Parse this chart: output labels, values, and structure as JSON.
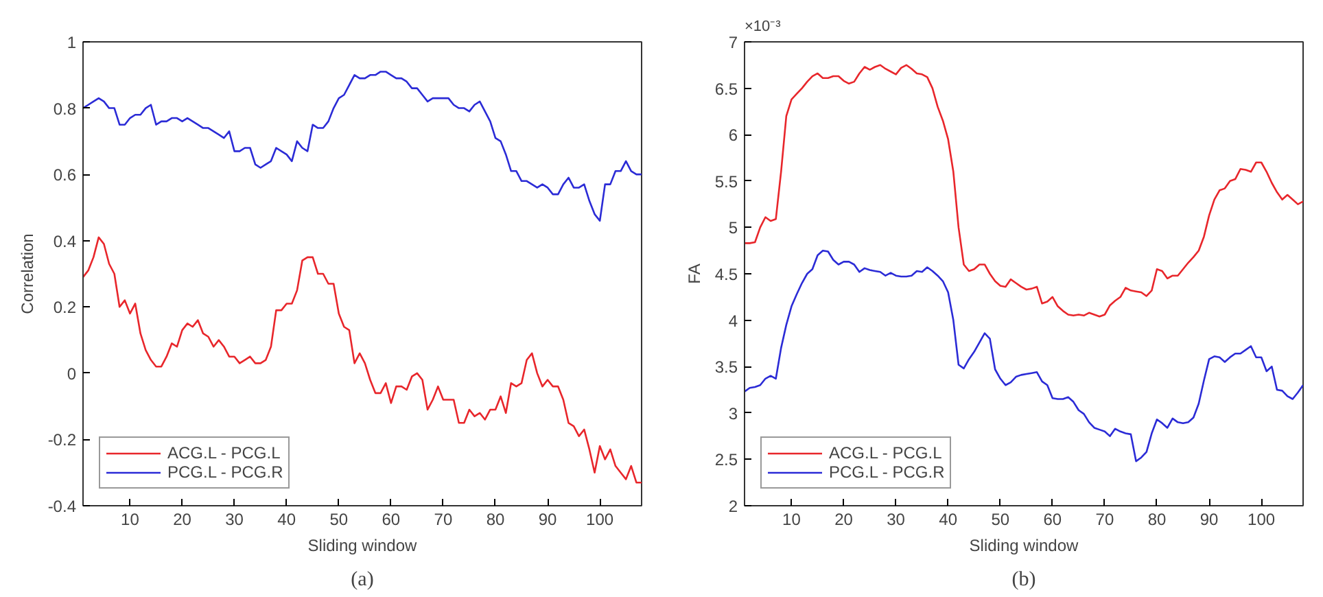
{
  "chart_data": [
    {
      "type": "line",
      "xlabel": "Sliding window",
      "ylabel": "Correlation",
      "annotations": [
        "(a)"
      ],
      "xlim": [
        1,
        108
      ],
      "xticks": [
        10,
        20,
        30,
        40,
        50,
        60,
        70,
        80,
        90,
        100
      ],
      "ylim": [
        -0.4,
        1
      ],
      "yticks": [
        -0.4,
        -0.2,
        0,
        0.2,
        0.4,
        0.6,
        0.8,
        1
      ],
      "grid": false,
      "legend": "bottom left",
      "marker": "none",
      "line_style": "solid",
      "x": [
        1,
        2,
        3,
        4,
        5,
        6,
        7,
        8,
        9,
        10,
        11,
        12,
        13,
        14,
        15,
        16,
        17,
        18,
        19,
        20,
        21,
        22,
        23,
        24,
        25,
        26,
        27,
        28,
        29,
        30,
        31,
        32,
        33,
        34,
        35,
        36,
        37,
        38,
        39,
        40,
        41,
        42,
        43,
        44,
        45,
        46,
        47,
        48,
        49,
        50,
        51,
        52,
        53,
        54,
        55,
        56,
        57,
        58,
        59,
        60,
        61,
        62,
        63,
        64,
        65,
        66,
        67,
        68,
        69,
        70,
        71,
        72,
        73,
        74,
        75,
        76,
        77,
        78,
        79,
        80,
        81,
        82,
        83,
        84,
        85,
        86,
        87,
        88,
        89,
        90,
        91,
        92,
        93,
        94,
        95,
        96,
        97,
        98,
        99,
        100,
        101,
        102,
        103,
        104,
        105,
        106,
        107,
        108
      ],
      "series": [
        {
          "name": "ACG.L - PCG.L",
          "color": "#e8262b",
          "values": [
            0.29,
            0.31,
            0.35,
            0.41,
            0.39,
            0.33,
            0.3,
            0.2,
            0.22,
            0.18,
            0.21,
            0.12,
            0.07,
            0.04,
            0.02,
            0.02,
            0.05,
            0.09,
            0.08,
            0.13,
            0.15,
            0.14,
            0.16,
            0.12,
            0.11,
            0.08,
            0.1,
            0.08,
            0.05,
            0.05,
            0.03,
            0.04,
            0.05,
            0.03,
            0.03,
            0.04,
            0.08,
            0.19,
            0.19,
            0.21,
            0.21,
            0.25,
            0.34,
            0.35,
            0.35,
            0.3,
            0.3,
            0.27,
            0.27,
            0.18,
            0.14,
            0.13,
            0.03,
            0.06,
            0.03,
            -0.02,
            -0.06,
            -0.06,
            -0.03,
            -0.09,
            -0.04,
            -0.04,
            -0.05,
            -0.01,
            0.0,
            -0.02,
            -0.11,
            -0.08,
            -0.04,
            -0.08,
            -0.08,
            -0.08,
            -0.15,
            -0.15,
            -0.11,
            -0.13,
            -0.12,
            -0.14,
            -0.11,
            -0.11,
            -0.07,
            -0.12,
            -0.03,
            -0.04,
            -0.03,
            0.04,
            0.06,
            0.0,
            -0.04,
            -0.02,
            -0.04,
            -0.04,
            -0.08,
            -0.15,
            -0.16,
            -0.19,
            -0.17,
            -0.23,
            -0.3,
            -0.22,
            -0.26,
            -0.23,
            -0.28,
            -0.3,
            -0.32,
            -0.28,
            -0.33,
            -0.33
          ]
        },
        {
          "name": "PCG.L - PCG.R",
          "color": "#2b2bd6",
          "values": [
            0.8,
            0.81,
            0.82,
            0.83,
            0.82,
            0.8,
            0.8,
            0.75,
            0.75,
            0.77,
            0.78,
            0.78,
            0.8,
            0.81,
            0.75,
            0.76,
            0.76,
            0.77,
            0.77,
            0.76,
            0.77,
            0.76,
            0.75,
            0.74,
            0.74,
            0.73,
            0.72,
            0.71,
            0.73,
            0.67,
            0.67,
            0.68,
            0.68,
            0.63,
            0.62,
            0.63,
            0.64,
            0.68,
            0.67,
            0.66,
            0.64,
            0.7,
            0.68,
            0.67,
            0.75,
            0.74,
            0.74,
            0.76,
            0.8,
            0.83,
            0.84,
            0.87,
            0.9,
            0.89,
            0.89,
            0.9,
            0.9,
            0.91,
            0.91,
            0.9,
            0.89,
            0.89,
            0.88,
            0.86,
            0.86,
            0.84,
            0.82,
            0.83,
            0.83,
            0.83,
            0.83,
            0.81,
            0.8,
            0.8,
            0.79,
            0.81,
            0.82,
            0.79,
            0.76,
            0.71,
            0.7,
            0.66,
            0.61,
            0.61,
            0.58,
            0.58,
            0.57,
            0.56,
            0.57,
            0.56,
            0.54,
            0.54,
            0.57,
            0.59,
            0.56,
            0.56,
            0.57,
            0.52,
            0.48,
            0.46,
            0.57,
            0.57,
            0.61,
            0.61,
            0.64,
            0.61,
            0.6,
            0.6
          ]
        }
      ]
    },
    {
      "type": "line",
      "xlabel": "Sliding window",
      "ylabel": "FA",
      "annotations": [
        "×10⁻³",
        "(b)"
      ],
      "xlim": [
        1,
        108
      ],
      "xticks": [
        10,
        20,
        30,
        40,
        50,
        60,
        70,
        80,
        90,
        100
      ],
      "ylim": [
        2,
        7
      ],
      "yticks": [
        2,
        2.5,
        3,
        3.5,
        4,
        4.5,
        5,
        5.5,
        6,
        6.5,
        7
      ],
      "grid": false,
      "legend": "bottom left",
      "marker": "none",
      "line_style": "solid",
      "x": [
        1,
        2,
        3,
        4,
        5,
        6,
        7,
        8,
        9,
        10,
        11,
        12,
        13,
        14,
        15,
        16,
        17,
        18,
        19,
        20,
        21,
        22,
        23,
        24,
        25,
        26,
        27,
        28,
        29,
        30,
        31,
        32,
        33,
        34,
        35,
        36,
        37,
        38,
        39,
        40,
        41,
        42,
        43,
        44,
        45,
        46,
        47,
        48,
        49,
        50,
        51,
        52,
        53,
        54,
        55,
        56,
        57,
        58,
        59,
        60,
        61,
        62,
        63,
        64,
        65,
        66,
        67,
        68,
        69,
        70,
        71,
        72,
        73,
        74,
        75,
        76,
        77,
        78,
        79,
        80,
        81,
        82,
        83,
        84,
        85,
        86,
        87,
        88,
        89,
        90,
        91,
        92,
        93,
        94,
        95,
        96,
        97,
        98,
        99,
        100,
        101,
        102,
        103,
        104,
        105,
        106,
        107,
        108
      ],
      "series": [
        {
          "name": "ACG.L - PCG.L",
          "color": "#e8262b",
          "values": [
            4.83,
            4.83,
            4.84,
            5.0,
            5.11,
            5.07,
            5.09,
            5.6,
            6.2,
            6.38,
            6.44,
            6.5,
            6.57,
            6.63,
            6.66,
            6.61,
            6.61,
            6.63,
            6.63,
            6.58,
            6.55,
            6.57,
            6.66,
            6.73,
            6.7,
            6.73,
            6.75,
            6.71,
            6.68,
            6.65,
            6.72,
            6.75,
            6.71,
            6.66,
            6.65,
            6.62,
            6.5,
            6.3,
            6.15,
            5.95,
            5.6,
            5.0,
            4.6,
            4.53,
            4.55,
            4.6,
            4.6,
            4.5,
            4.42,
            4.37,
            4.36,
            4.44,
            4.4,
            4.36,
            4.33,
            4.34,
            4.36,
            4.18,
            4.2,
            4.25,
            4.15,
            4.1,
            4.06,
            4.05,
            4.06,
            4.05,
            4.08,
            4.06,
            4.04,
            4.06,
            4.16,
            4.21,
            4.25,
            4.35,
            4.32,
            4.31,
            4.3,
            4.26,
            4.32,
            4.55,
            4.53,
            4.45,
            4.48,
            4.48,
            4.55,
            4.62,
            4.68,
            4.75,
            4.9,
            5.13,
            5.3,
            5.4,
            5.42,
            5.5,
            5.52,
            5.63,
            5.62,
            5.6,
            5.7,
            5.7,
            5.6,
            5.48,
            5.38,
            5.3,
            5.35,
            5.3,
            5.25,
            5.28
          ]
        },
        {
          "name": "PCG.L - PCG.R",
          "color": "#2b2bd6",
          "values": [
            3.23,
            3.27,
            3.28,
            3.3,
            3.37,
            3.4,
            3.37,
            3.7,
            3.95,
            4.15,
            4.28,
            4.4,
            4.5,
            4.55,
            4.7,
            4.75,
            4.74,
            4.65,
            4.6,
            4.63,
            4.63,
            4.6,
            4.52,
            4.56,
            4.54,
            4.53,
            4.52,
            4.48,
            4.51,
            4.48,
            4.47,
            4.47,
            4.48,
            4.53,
            4.52,
            4.57,
            4.53,
            4.48,
            4.42,
            4.3,
            4.0,
            3.52,
            3.48,
            3.58,
            3.66,
            3.76,
            3.86,
            3.8,
            3.47,
            3.37,
            3.3,
            3.33,
            3.39,
            3.41,
            3.42,
            3.43,
            3.44,
            3.34,
            3.3,
            3.16,
            3.15,
            3.15,
            3.17,
            3.12,
            3.03,
            2.99,
            2.9,
            2.84,
            2.82,
            2.8,
            2.75,
            2.83,
            2.8,
            2.78,
            2.77,
            2.48,
            2.52,
            2.58,
            2.78,
            2.93,
            2.89,
            2.84,
            2.94,
            2.9,
            2.89,
            2.9,
            2.95,
            3.1,
            3.35,
            3.58,
            3.61,
            3.6,
            3.55,
            3.6,
            3.64,
            3.64,
            3.68,
            3.72,
            3.6,
            3.6,
            3.45,
            3.5,
            3.25,
            3.24,
            3.18,
            3.15,
            3.22,
            3.3
          ]
        }
      ]
    }
  ]
}
